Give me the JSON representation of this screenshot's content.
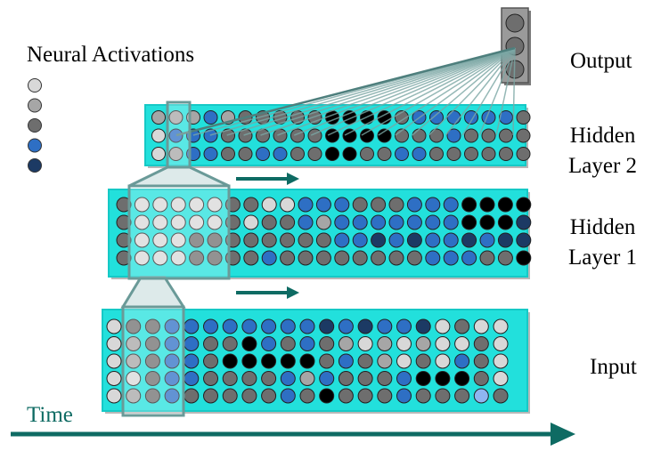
{
  "legend": {
    "title": "Neural Activations",
    "levels": [
      {
        "name": "very-low",
        "color": "#d8d8d8"
      },
      {
        "name": "low",
        "color": "#a6a6a6"
      },
      {
        "name": "medium",
        "color": "#6e6e6e"
      },
      {
        "name": "high",
        "color": "#2e6fc4"
      },
      {
        "name": "very-high",
        "color": "#1c3a64"
      }
    ]
  },
  "colors": {
    "layer_fill": "#22e0dc",
    "layer_fill_dark": "#15c9c6",
    "window_stroke": "#6a9a98",
    "arrow": "#0e6b63",
    "output_box": "#9a9a9a",
    "black_unit": "#000000",
    "light_blue_unit": "#8fb5f0"
  },
  "labels": {
    "output": "Output",
    "hidden2_line1": "Hidden",
    "hidden2_line2": "Layer 2",
    "hidden1_line1": "Hidden",
    "hidden1_line2": "Layer 1",
    "input": "Input",
    "time": "Time"
  },
  "layers": {
    "output": {
      "units": [
        "medium",
        "medium",
        "medium"
      ]
    },
    "hidden2": {
      "rows": [
        "LLLHLMMMMMKKKKMHHHHHHM",
        "VHHHMMMMMMKKKKMMMHMMMM",
        "VLHHMMHHMMKKMMHHMMMMMM"
      ]
    },
    "hidden1": {
      "rows": [
        "MVVVVVMMVVHHHMMMHHHKKKK",
        "MVVVVVMVMMHLHHHHHHHKKKD",
        "MVVVMMMMMMMMHHDHDHHDHDD",
        "MVVVMMMMHMMMMMMMMHHHMMK"
      ]
    },
    "input": {
      "rows": [
        "VMMHHHHHHHHDHDHHDVMVV",
        "VLMHHMMKHMHMLVLVLVVMV",
        "VLMHHMKKKKKMHMLVMVHMV",
        "VVMHHMMMMHLHMMMHKKKMV",
        "VLMHMMMMMHMKMMMHMMMPM"
      ]
    }
  }
}
